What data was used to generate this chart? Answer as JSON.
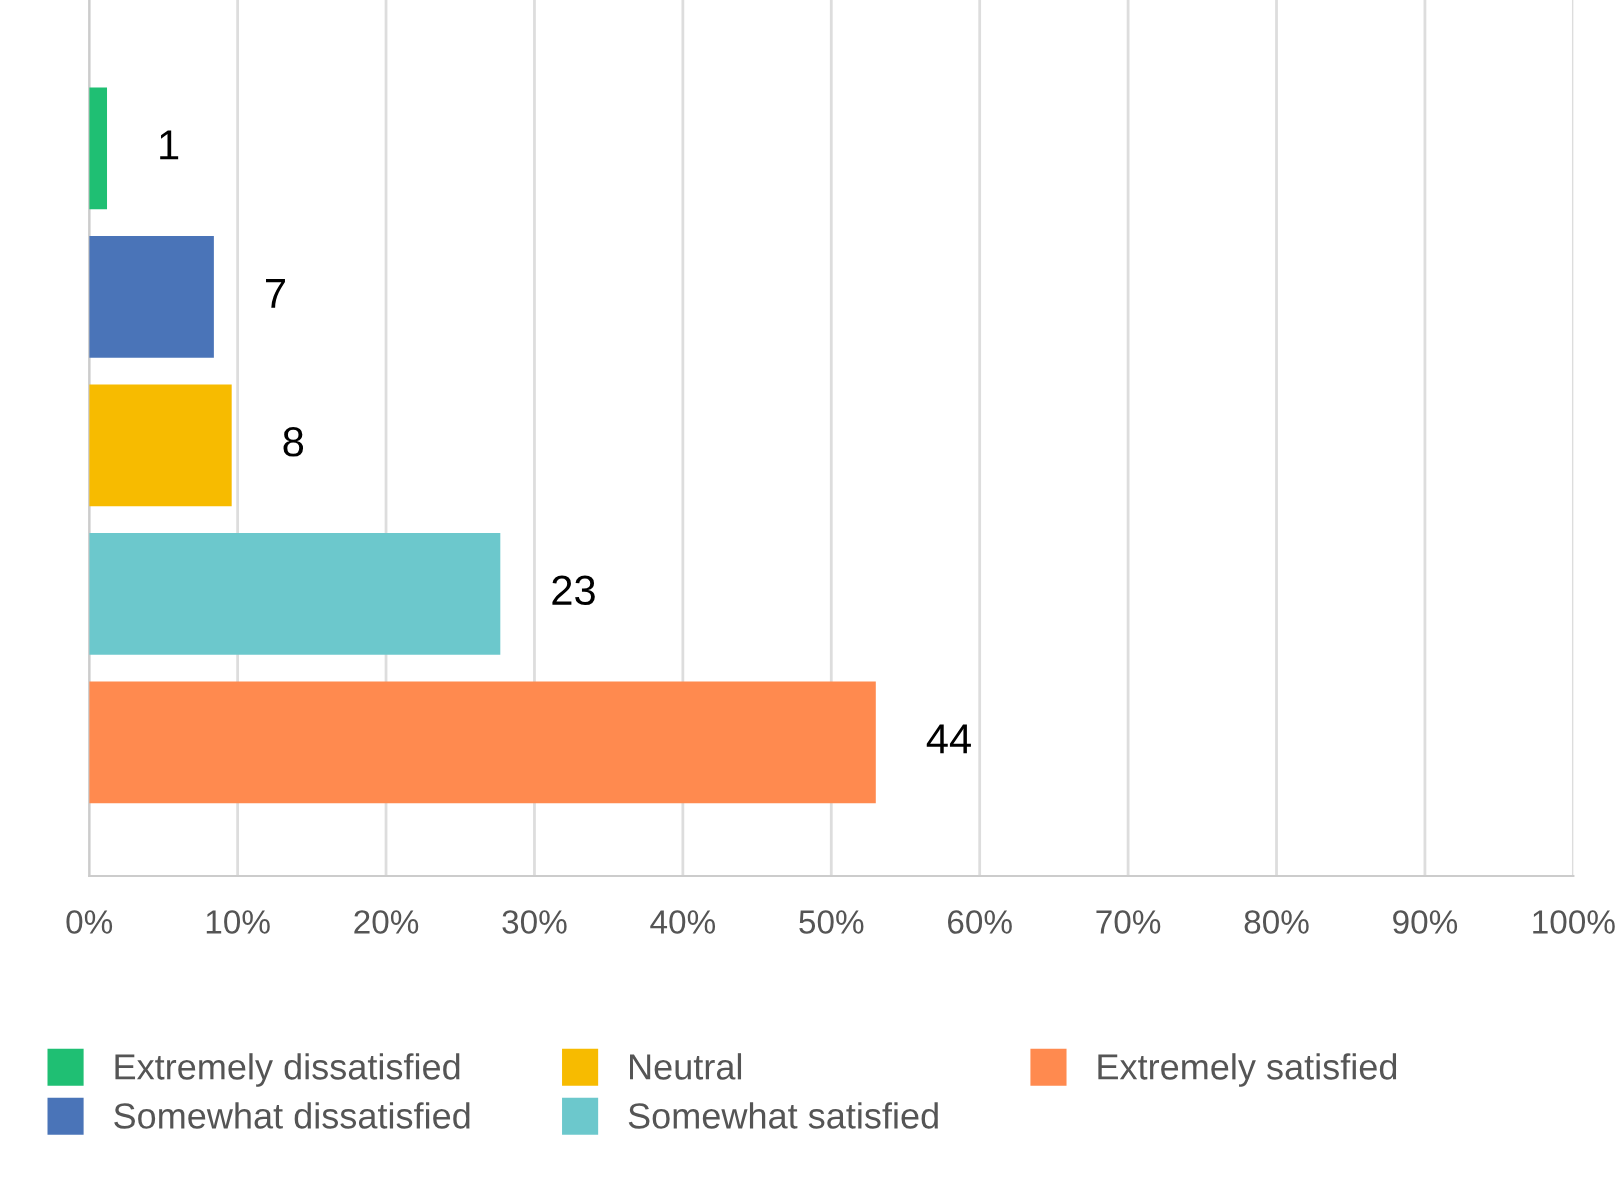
{
  "chart_data": {
    "type": "bar",
    "orientation": "horizontal",
    "categories": [
      null,
      null,
      null,
      null,
      null
    ],
    "series": [
      {
        "name": "Extremely dissatisfied",
        "color": "#1fbf73",
        "values": [
          1.2,
          null,
          null,
          null,
          null
        ]
      },
      {
        "name": "Somewhat dissatisfied",
        "color": "#4a74b8",
        "values": [
          null,
          8.4,
          null,
          null,
          null
        ]
      },
      {
        "name": "Neutral",
        "color": "#f7bb00",
        "values": [
          null,
          null,
          9.6,
          null,
          null
        ]
      },
      {
        "name": "Somewhat satisfied",
        "color": "#6cc8cc",
        "values": [
          null,
          null,
          null,
          27.7,
          null
        ]
      },
      {
        "name": "Extremely satisfied",
        "color": "#ff8a4f",
        "values": [
          null,
          null,
          null,
          null,
          53.0
        ]
      }
    ],
    "annotations": [
      "1",
      "7",
      "8",
      "23",
      "44"
    ],
    "xlim": [
      0,
      100
    ],
    "xticks": [
      {
        "value": 0,
        "label": "0%"
      },
      {
        "value": 10,
        "label": "10%"
      },
      {
        "value": 20,
        "label": "20%"
      },
      {
        "value": 30,
        "label": "30%"
      },
      {
        "value": 40,
        "label": "40%"
      },
      {
        "value": 50,
        "label": "50%"
      },
      {
        "value": 60,
        "label": "60%"
      },
      {
        "value": 70,
        "label": "70%"
      },
      {
        "value": 80,
        "label": "80%"
      },
      {
        "value": 90,
        "label": "90%"
      },
      {
        "value": 100,
        "label": "100%"
      }
    ],
    "grid": "x",
    "legend": "bottom",
    "tick_labels": "x"
  }
}
